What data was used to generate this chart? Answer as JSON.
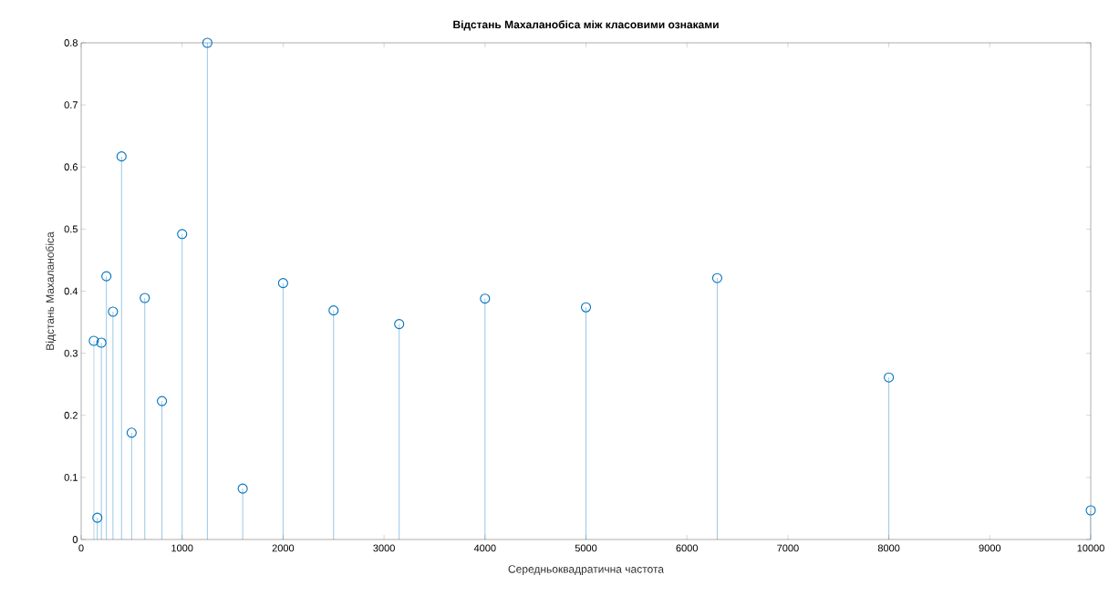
{
  "chart_data": {
    "type": "lollipop",
    "title": "Відстань Махаланобіса між класовими ознаками",
    "xlabel": "Середньоквадратична частота",
    "ylabel": "Відстань Махаланобіса",
    "x": [
      125,
      160,
      200,
      250,
      315,
      400,
      500,
      630,
      800,
      1000,
      1250,
      1600,
      2000,
      2500,
      3150,
      4000,
      5000,
      6300,
      8000,
      10000
    ],
    "values": [
      0.32,
      0.035,
      0.317,
      0.424,
      0.367,
      0.617,
      0.172,
      0.389,
      0.223,
      0.492,
      0.8,
      0.082,
      0.413,
      0.369,
      0.347,
      0.388,
      0.374,
      0.421,
      0.261,
      0.047
    ],
    "color": "#0072bd",
    "marker": "circle",
    "xlim": [
      0,
      10000
    ],
    "ylim": [
      0,
      0.8
    ],
    "xticks": [
      0,
      1000,
      2000,
      3000,
      4000,
      5000,
      6000,
      7000,
      8000,
      9000,
      10000
    ],
    "yticks": [
      0,
      0.1,
      0.2,
      0.3,
      0.4,
      0.5,
      0.6,
      0.7,
      0.8
    ]
  }
}
